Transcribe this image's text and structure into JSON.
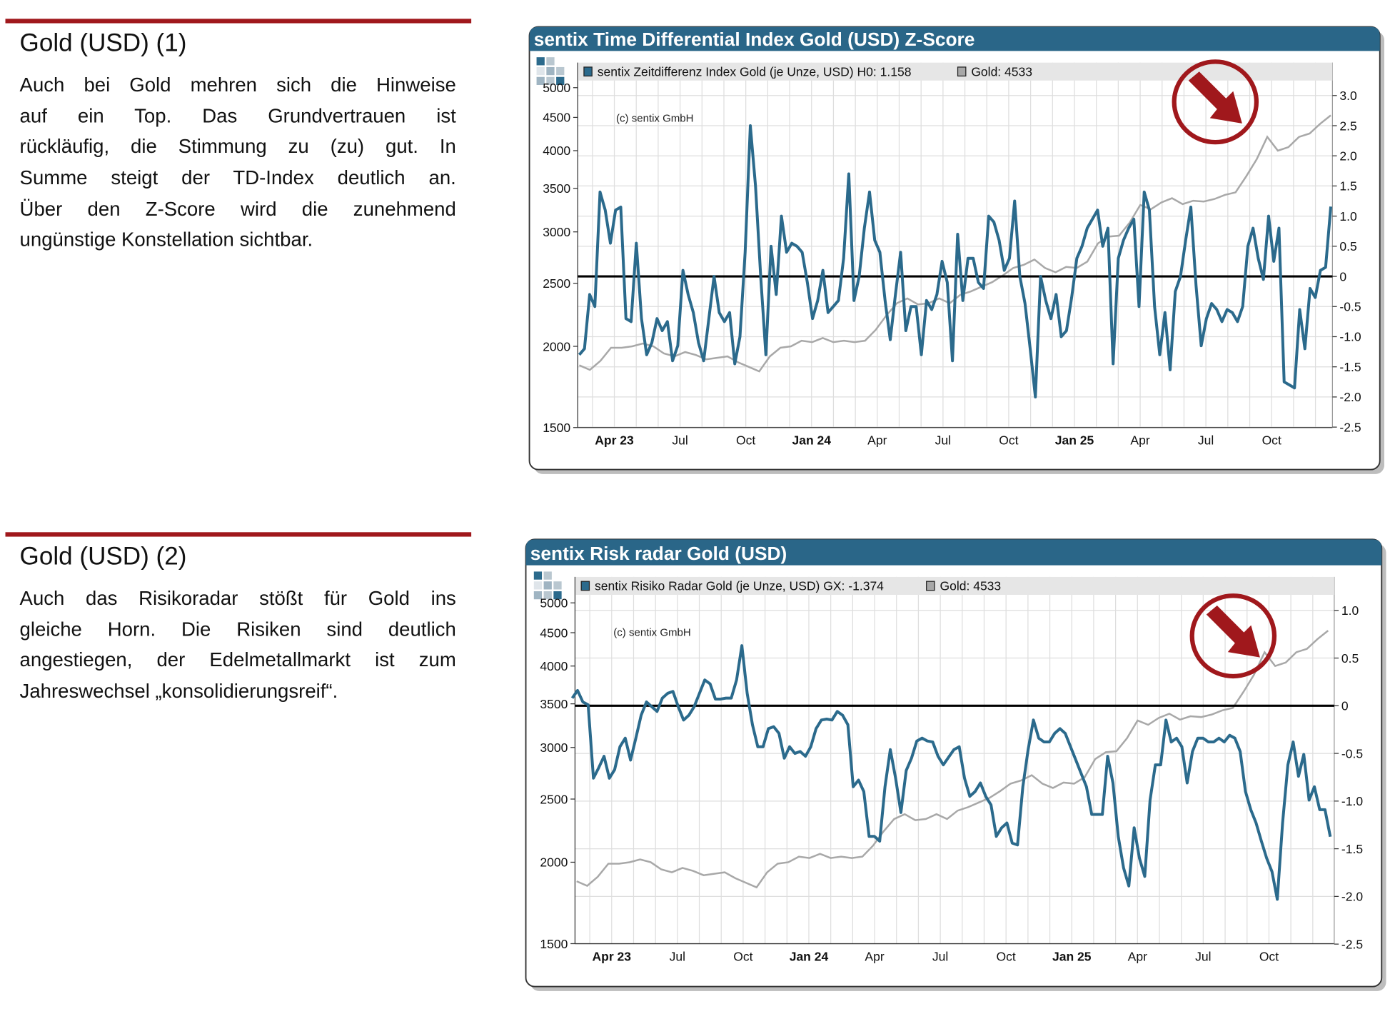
{
  "sections": [
    {
      "title": "Gold (USD) (1)",
      "lines": [
        "Auch bei Gold mehren sich die Hinweise",
        "auf ein Top. Das Grundvertrauen ist",
        "rückläufig, die Stimmung zu (zu) gut. In",
        "Summe steigt der TD-Index deutlich an.",
        "Über den Z-Score wird die zunehmend",
        "ungünstige Konstellation sichtbar."
      ]
    },
    {
      "title": "Gold (USD) (2)",
      "lines": [
        "Auch das Risikoradar stößt für Gold ins",
        "gleiche Horn. Die Risiken sind deutlich",
        "angestiegen, der Edelmetallmarkt ist zum",
        "Jahreswechsel „konsolidierungsreif“."
      ]
    }
  ],
  "colors": {
    "header": "#2a6688",
    "index_line": "#2b6a8c",
    "gold_line": "#a8a8a8",
    "accent_red": "#a0181c"
  },
  "chart_data": [
    {
      "type": "line",
      "title": "sentix Time Differential Index Gold (USD) Z-Score",
      "copyright": "(c) sentix GmbH",
      "legend": [
        {
          "label": "sentix Zeitdifferenz Index Gold (je Unze, USD) H0: 1.158",
          "color": "#2b6a8c"
        },
        {
          "label": "Gold: 4533",
          "color": "#a8a8a8"
        }
      ],
      "legend_position": "top",
      "x_unit": "months since Jan 2023",
      "x_ticks": [
        {
          "m": 3,
          "label": "Apr 23",
          "bold": true
        },
        {
          "m": 6,
          "label": "Jul"
        },
        {
          "m": 9,
          "label": "Oct"
        },
        {
          "m": 12,
          "label": "Jan 24",
          "bold": true
        },
        {
          "m": 15,
          "label": "Apr"
        },
        {
          "m": 18,
          "label": "Jul"
        },
        {
          "m": 21,
          "label": "Oct"
        },
        {
          "m": 24,
          "label": "Jan 25",
          "bold": true
        },
        {
          "m": 27,
          "label": "Apr"
        },
        {
          "m": 30,
          "label": "Jul"
        },
        {
          "m": 33,
          "label": "Oct"
        }
      ],
      "left_axis": {
        "scale": "log",
        "range": [
          1500,
          5000
        ],
        "ticks": [
          "5000",
          "4500",
          "4000",
          "3500",
          "3000",
          "2500",
          "2000",
          "1500"
        ]
      },
      "right_axis": {
        "range": [
          -2.5,
          3.0
        ],
        "ticks": [
          "3.0",
          "2.5",
          "2.0",
          "1.5",
          "1.0",
          "0.5",
          "0",
          "-0.5",
          "-1.0",
          "-1.5",
          "-2.0",
          "-2.5"
        ]
      },
      "zero_line": 0,
      "index_series": {
        "x_start": 1.4,
        "x_end": 35.7,
        "values": [
          -1.3,
          -1.2,
          -0.3,
          -0.5,
          1.4,
          1.1,
          0.55,
          1.1,
          1.15,
          -0.7,
          -0.75,
          0.55,
          -0.7,
          -1.3,
          -1.1,
          -0.7,
          -0.9,
          -0.75,
          -1.4,
          -1.15,
          0.1,
          -0.3,
          -0.6,
          -1.1,
          -1.4,
          -0.7,
          0,
          -0.6,
          -0.75,
          -0.6,
          -1.45,
          -1.0,
          0.4,
          2.5,
          1.5,
          0,
          -1.3,
          0.5,
          -0.3,
          1.0,
          0.4,
          0.55,
          0.5,
          0.4,
          -0.1,
          -0.7,
          -0.4,
          0.1,
          -0.6,
          -0.5,
          -0.4,
          0.3,
          1.7,
          -0.4,
          0,
          0.8,
          1.4,
          0.6,
          0.4,
          -0.4,
          -1.05,
          -0.3,
          0.4,
          -0.9,
          -0.5,
          -0.5,
          -1.3,
          -0.4,
          -0.55,
          -0.3,
          0.25,
          -0.1,
          -1.4,
          0.7,
          -0.4,
          0.3,
          0.3,
          -0.1,
          -0.2,
          1.0,
          0.9,
          0.6,
          0.1,
          0.3,
          1.25,
          0,
          -0.45,
          -1.2,
          -2.0,
          0,
          -0.4,
          -0.7,
          -0.3,
          -1.0,
          -0.9,
          -0.35,
          0.3,
          0.5,
          0.8,
          0.95,
          1.1,
          0.5,
          0.8,
          -1.45,
          0.3,
          0.6,
          0.8,
          0.95,
          -0.5,
          1.4,
          1.1,
          -0.5,
          -1.3,
          -0.6,
          -1.55,
          -0.25,
          0,
          0.6,
          1.15,
          -0.15,
          -1.15,
          -0.7,
          -0.45,
          -0.55,
          -0.75,
          -0.55,
          -0.6,
          -0.75,
          -0.5,
          0.5,
          0.8,
          0.3,
          -0.05,
          1.0,
          0.25,
          0.8,
          -1.75,
          -1.8,
          -1.85,
          -0.55,
          -1.2,
          -0.2,
          -0.35,
          0.1,
          0.15,
          1.158
        ]
      }
    },
    {
      "type": "line",
      "title": "sentix Risk radar Gold (USD)",
      "copyright": "(c) sentix GmbH",
      "legend": [
        {
          "label": "sentix Risiko Radar Gold (je Unze, USD) GX: -1.374",
          "color": "#2b6a8c"
        },
        {
          "label": "Gold: 4533",
          "color": "#a8a8a8"
        }
      ],
      "legend_position": "top",
      "x_unit": "months since Jan 2023",
      "x_ticks": [
        {
          "m": 3,
          "label": "Apr 23",
          "bold": true
        },
        {
          "m": 6,
          "label": "Jul"
        },
        {
          "m": 9,
          "label": "Oct"
        },
        {
          "m": 12,
          "label": "Jan 24",
          "bold": true
        },
        {
          "m": 15,
          "label": "Apr"
        },
        {
          "m": 18,
          "label": "Jul"
        },
        {
          "m": 21,
          "label": "Oct"
        },
        {
          "m": 24,
          "label": "Jan 25",
          "bold": true
        },
        {
          "m": 27,
          "label": "Apr"
        },
        {
          "m": 30,
          "label": "Jul"
        },
        {
          "m": 33,
          "label": "Oct"
        }
      ],
      "left_axis": {
        "scale": "log",
        "range": [
          1500,
          5000
        ],
        "ticks": [
          "5000",
          "4500",
          "4000",
          "3500",
          "3000",
          "2500",
          "2000",
          "1500"
        ]
      },
      "right_axis": {
        "range": [
          -2.5,
          1.0
        ],
        "ticks": [
          "1.0",
          "0.5",
          "0",
          "-0.5",
          "-1.0",
          "-1.5",
          "-2.0",
          "-2.5"
        ]
      },
      "zero_line": 0,
      "index_series": {
        "x_start": 1.2,
        "x_end": 35.8,
        "values": [
          0.08,
          0.16,
          0.04,
          0.01,
          -0.76,
          -0.65,
          -0.53,
          -0.76,
          -0.67,
          -0.43,
          -0.34,
          -0.57,
          -0.34,
          -0.1,
          0.04,
          -0.01,
          -0.06,
          0.08,
          0.13,
          0.15,
          -0.01,
          -0.15,
          -0.1,
          -0.01,
          0.13,
          0.27,
          0.23,
          0.07,
          0.07,
          0.08,
          0.08,
          0.27,
          0.63,
          0.13,
          -0.2,
          -0.43,
          -0.43,
          -0.24,
          -0.22,
          -0.29,
          -0.55,
          -0.43,
          -0.5,
          -0.48,
          -0.53,
          -0.43,
          -0.24,
          -0.15,
          -0.14,
          -0.15,
          -0.06,
          -0.1,
          -0.2,
          -0.85,
          -0.78,
          -0.9,
          -1.37,
          -1.37,
          -1.42,
          -0.85,
          -0.46,
          -0.76,
          -1.12,
          -0.68,
          -0.55,
          -0.37,
          -0.34,
          -0.37,
          -0.38,
          -0.53,
          -0.62,
          -0.54,
          -0.46,
          -0.43,
          -0.76,
          -0.95,
          -0.9,
          -0.81,
          -0.95,
          -1.04,
          -1.37,
          -1.28,
          -1.23,
          -1.44,
          -1.46,
          -0.85,
          -0.46,
          -0.15,
          -0.34,
          -0.38,
          -0.38,
          -0.29,
          -0.24,
          -0.29,
          -0.43,
          -0.57,
          -0.71,
          -0.85,
          -1.14,
          -1.14,
          -1.14,
          -0.53,
          -0.81,
          -1.37,
          -1.7,
          -1.89,
          -1.28,
          -1.6,
          -1.79,
          -0.99,
          -0.62,
          -0.62,
          -0.15,
          -0.38,
          -0.34,
          -0.43,
          -0.81,
          -0.48,
          -0.34,
          -0.34,
          -0.38,
          -0.38,
          -0.34,
          -0.38,
          -0.31,
          -0.34,
          -0.48,
          -0.9,
          -1.09,
          -1.23,
          -1.42,
          -1.6,
          -1.74,
          -2.03,
          -1.23,
          -0.62,
          -0.38,
          -0.74,
          -0.51,
          -0.99,
          -0.85,
          -1.09,
          -1.09,
          -1.374
        ]
      }
    }
  ],
  "gold_series": {
    "x_start": 1.4,
    "x_end": 35.7,
    "values": [
      1870,
      1840,
      1900,
      1990,
      1990,
      2000,
      2020,
      2000,
      1950,
      1930,
      1960,
      1940,
      1910,
      1920,
      1930,
      1890,
      1860,
      1830,
      1930,
      1990,
      2000,
      2040,
      2030,
      2060,
      2030,
      2040,
      2030,
      2040,
      2120,
      2230,
      2330,
      2370,
      2320,
      2330,
      2370,
      2330,
      2400,
      2430,
      2470,
      2510,
      2570,
      2640,
      2670,
      2720,
      2640,
      2600,
      2650,
      2640,
      2700,
      2880,
      2950,
      2960,
      3100,
      3300,
      3250,
      3330,
      3380,
      3310,
      3350,
      3340,
      3370,
      3420,
      3450,
      3650,
      3880,
      4200,
      4000,
      4050,
      4200,
      4250,
      4400,
      4533
    ]
  }
}
